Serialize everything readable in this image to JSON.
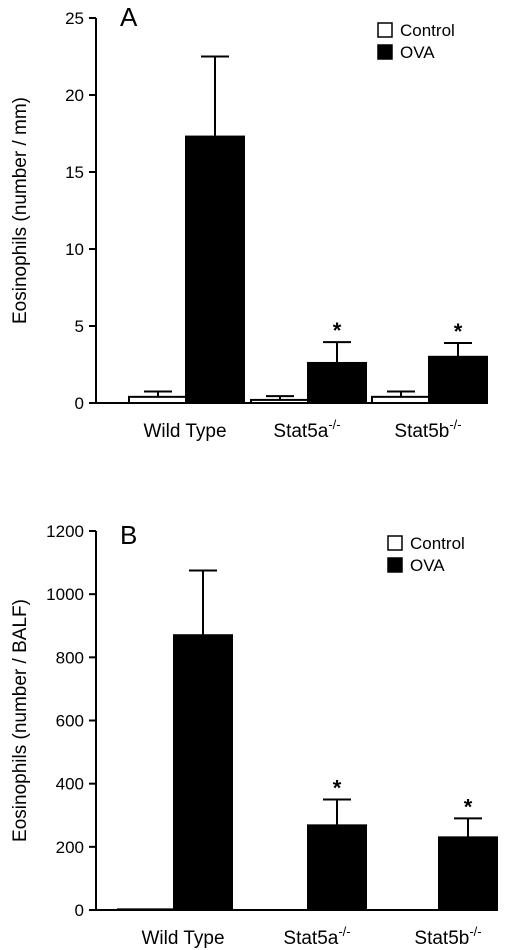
{
  "chart_data": [
    {
      "type": "bar",
      "panel_label": "A",
      "ylabel": "Eosinophils (number / mm)",
      "ylim": [
        0,
        25
      ],
      "yticks": [
        0,
        5,
        10,
        15,
        20,
        25
      ],
      "categories": [
        "Wild Type",
        "Stat5a",
        "Stat5b"
      ],
      "category_superscript": [
        "",
        "-/-",
        "-/-"
      ],
      "series": [
        {
          "name": "Control",
          "color": "#ffffff",
          "values": [
            0.4,
            0.2,
            0.4
          ],
          "errors": [
            0.35,
            0.25,
            0.35
          ]
        },
        {
          "name": "OVA",
          "color": "#000000",
          "values": [
            17.3,
            2.6,
            3.0
          ],
          "errors": [
            5.2,
            1.35,
            0.9
          ]
        }
      ],
      "significance_marker": "*",
      "significance": [
        false,
        true,
        true
      ],
      "legend_position": "top-right"
    },
    {
      "type": "bar",
      "panel_label": "B",
      "ylabel": "Eosinophils  (number / BALF)",
      "ylim": [
        0,
        1200
      ],
      "yticks": [
        0,
        200,
        400,
        600,
        800,
        1000,
        1200
      ],
      "categories": [
        "Wild Type",
        "Stat5a",
        "Stat5b"
      ],
      "category_superscript": [
        "",
        "-/-",
        "-/-"
      ],
      "series": [
        {
          "name": "Control",
          "color": "#ffffff",
          "values": [
            2,
            0,
            0
          ],
          "errors": [
            0,
            0,
            0
          ]
        },
        {
          "name": "OVA",
          "color": "#000000",
          "values": [
            870,
            268,
            230
          ],
          "errors": [
            205,
            82,
            60
          ]
        }
      ],
      "significance_marker": "*",
      "significance": [
        false,
        true,
        true
      ],
      "legend_position": "top-right"
    }
  ]
}
